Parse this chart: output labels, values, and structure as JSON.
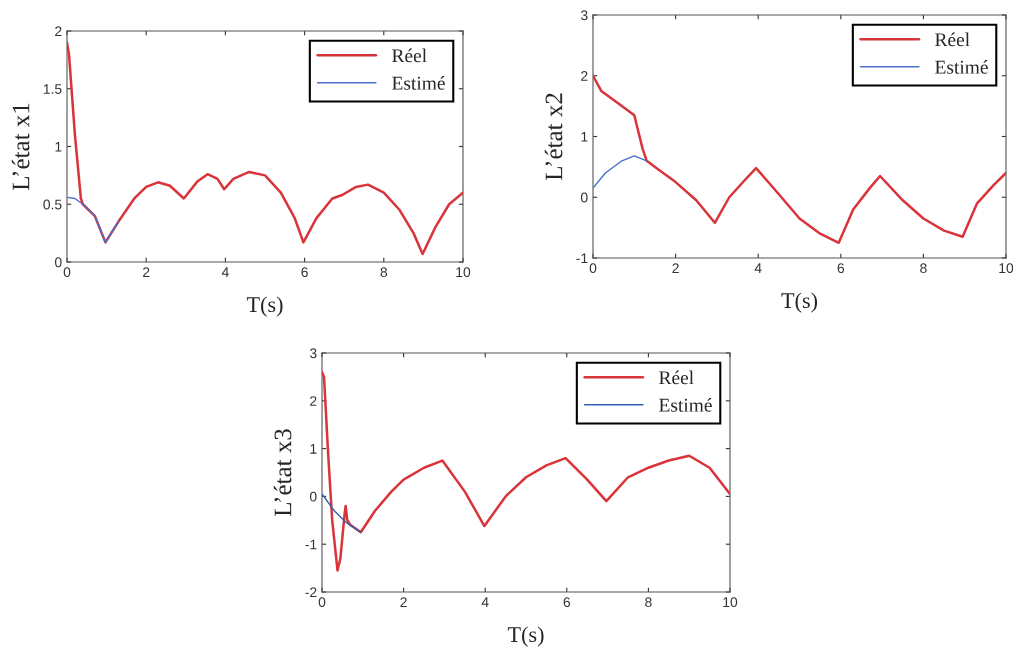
{
  "chart_data": [
    {
      "type": "line",
      "xlabel": "T(s)",
      "ylabel": "L’état x1",
      "xlim": [
        0,
        10
      ],
      "ylim": [
        0,
        2
      ],
      "xticks": [
        0,
        2,
        4,
        6,
        8,
        10
      ],
      "yticks": [
        0,
        0.5,
        1,
        1.5,
        2
      ],
      "grid": false,
      "legend": "top right",
      "series": [
        {
          "name": "Réel",
          "color": "#d9343a",
          "x": [
            0,
            0.05,
            0.2,
            0.35,
            0.4,
            0.7,
            0.97,
            1.3,
            1.7,
            2.0,
            2.3,
            2.6,
            2.95,
            3.3,
            3.55,
            3.8,
            3.97,
            4.2,
            4.6,
            5.0,
            5.4,
            5.75,
            5.97,
            6.3,
            6.7,
            6.95,
            7.3,
            7.6,
            8.0,
            8.4,
            8.75,
            8.98,
            9.3,
            9.65,
            10
          ],
          "values": [
            1.9,
            1.8,
            1.1,
            0.55,
            0.5,
            0.4,
            0.17,
            0.35,
            0.55,
            0.65,
            0.69,
            0.66,
            0.55,
            0.7,
            0.76,
            0.72,
            0.63,
            0.72,
            0.78,
            0.75,
            0.6,
            0.38,
            0.17,
            0.38,
            0.55,
            0.58,
            0.65,
            0.67,
            0.6,
            0.45,
            0.25,
            0.07,
            0.3,
            0.5,
            0.6
          ]
        },
        {
          "name": "Estimé",
          "color": "#4a6fc8",
          "x": [
            0,
            0.2,
            0.4,
            0.7,
            0.97,
            1.3
          ],
          "values": [
            0.56,
            0.55,
            0.5,
            0.4,
            0.17,
            0.35
          ]
        }
      ]
    },
    {
      "type": "line",
      "xlabel": "T(s)",
      "ylabel": "L’état x2",
      "xlim": [
        0,
        10
      ],
      "ylim": [
        -1,
        3
      ],
      "xticks": [
        0,
        2,
        4,
        6,
        8,
        10
      ],
      "yticks": [
        -1,
        0,
        1,
        2,
        3
      ],
      "grid": false,
      "legend": "top right",
      "series": [
        {
          "name": "Réel",
          "color": "#d9343a",
          "x": [
            0,
            0.2,
            0.6,
            1.0,
            1.2,
            1.3,
            1.6,
            2.0,
            2.5,
            2.95,
            3.3,
            3.7,
            3.95,
            4.5,
            5.0,
            5.5,
            5.95,
            6.3,
            6.7,
            6.95,
            7.5,
            8.0,
            8.5,
            8.95,
            9.3,
            9.7,
            10
          ],
          "values": [
            2.0,
            1.75,
            1.55,
            1.35,
            0.8,
            0.6,
            0.45,
            0.25,
            -0.05,
            -0.42,
            0,
            0.3,
            0.48,
            0.05,
            -0.35,
            -0.6,
            -0.75,
            -0.2,
            0.15,
            0.35,
            -0.05,
            -0.35,
            -0.55,
            -0.65,
            -0.1,
            0.2,
            0.4
          ]
        },
        {
          "name": "Estimé",
          "color": "#4a6fc8",
          "x": [
            0,
            0.3,
            0.7,
            1.0,
            1.3
          ],
          "values": [
            0.15,
            0.4,
            0.6,
            0.68,
            0.6
          ]
        }
      ]
    },
    {
      "type": "line",
      "xlabel": "T(s)",
      "ylabel": "L’état x3",
      "xlim": [
        0,
        10
      ],
      "ylim": [
        -2,
        3
      ],
      "xticks": [
        0,
        2,
        4,
        6,
        8,
        10
      ],
      "yticks": [
        -2,
        -1,
        0,
        1,
        2,
        3
      ],
      "grid": false,
      "legend": "top right",
      "series": [
        {
          "name": "Réel",
          "color": "#d9343a",
          "x": [
            0,
            0.05,
            0.15,
            0.25,
            0.38,
            0.45,
            0.55,
            0.58,
            0.62,
            0.7,
            0.95,
            1.3,
            1.7,
            2.0,
            2.5,
            2.95,
            3.5,
            3.98,
            4.5,
            5.0,
            5.5,
            5.97,
            6.5,
            6.97,
            7.5,
            8.0,
            8.5,
            9.0,
            9.5,
            10
          ],
          "values": [
            2.6,
            2.5,
            0.9,
            -0.5,
            -1.55,
            -1.3,
            -0.4,
            -0.2,
            -0.5,
            -0.6,
            -0.75,
            -0.3,
            0.1,
            0.35,
            0.6,
            0.75,
            0.1,
            -0.62,
            0,
            0.4,
            0.65,
            0.8,
            0.35,
            -0.1,
            0.4,
            0.6,
            0.75,
            0.85,
            0.6,
            0.05
          ]
        },
        {
          "name": "Estimé",
          "color": "#2f62b0",
          "x": [
            0,
            0.3,
            0.6,
            0.95
          ],
          "values": [
            0.05,
            -0.3,
            -0.55,
            -0.75
          ]
        }
      ]
    }
  ]
}
